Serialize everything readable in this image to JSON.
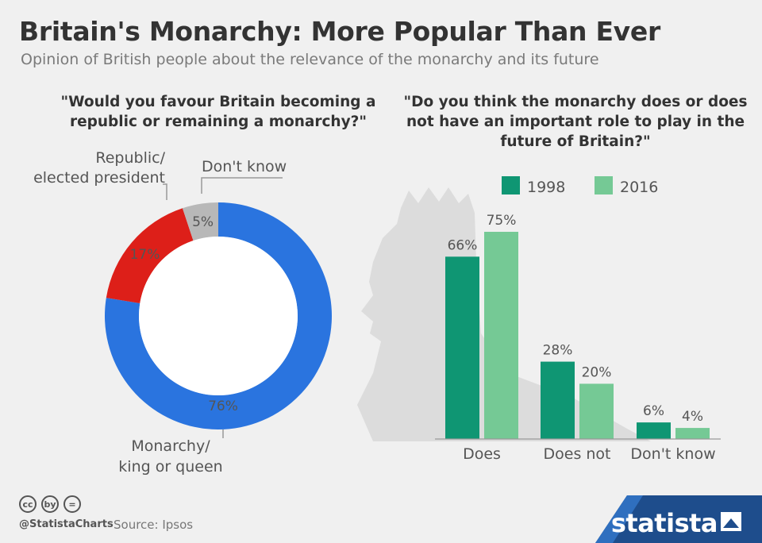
{
  "title": "Britain's Monarchy: More Popular Than Ever",
  "subtitle": "Opinion of British people about the relevance of the monarchy and its future",
  "footer": {
    "handle": "@StatistaCharts",
    "source": "Source: Ipsos",
    "brand": "statista",
    "cc_icons": [
      "cc",
      "by",
      "="
    ]
  },
  "colors": {
    "monarchy": "#2a74df",
    "republic": "#dd1f19",
    "dont_know": "#b8b8b8",
    "s1998": "#0f9673",
    "s2016": "#75c995",
    "brand": "#1e4d8c"
  },
  "chart_data": [
    {
      "type": "pie",
      "title": "\"Would you favour Britain becoming a republic or remaining a monarchy?\"",
      "slices": [
        {
          "label": "Monarchy/ king or queen",
          "label_lines": [
            "Monarchy/",
            "king or queen"
          ],
          "value": 76,
          "value_label": "76%"
        },
        {
          "label": "Republic/ elected president",
          "label_lines": [
            "Republic/",
            "elected president"
          ],
          "value": 17,
          "value_label": "17%"
        },
        {
          "label": "Don't know",
          "label_lines": [
            "Don't know"
          ],
          "value": 5,
          "value_label": "5%"
        }
      ]
    },
    {
      "type": "bar",
      "title": "\"Do you think the monarchy does or does not have an important role to play in the future of Britain?\"",
      "categories": [
        "Does",
        "Does not",
        "Don't know"
      ],
      "series": [
        {
          "name": "1998",
          "values": [
            66,
            28,
            6
          ],
          "labels": [
            "66%",
            "28%",
            "6%"
          ]
        },
        {
          "name": "2016",
          "values": [
            75,
            20,
            4
          ],
          "labels": [
            "75%",
            "20%",
            "4%"
          ]
        }
      ],
      "ylim": [
        0,
        75
      ],
      "legend": "top"
    }
  ]
}
